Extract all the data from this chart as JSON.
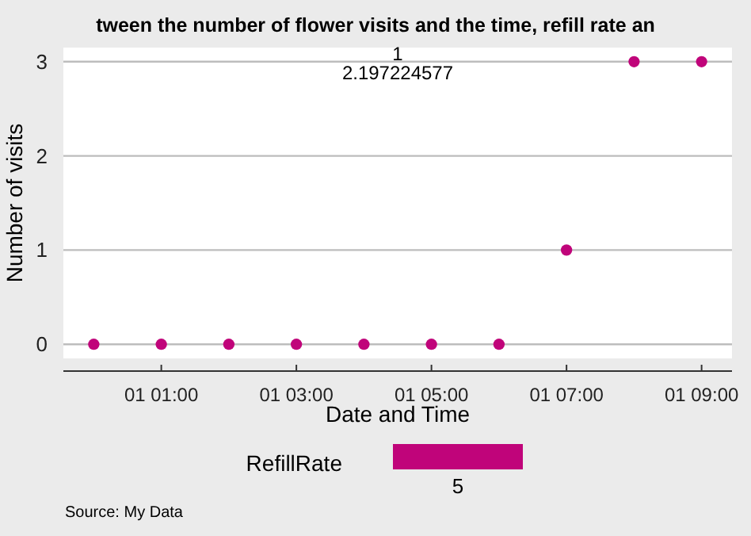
{
  "chart_data": {
    "type": "scatter",
    "title": "tween the number of flower visits and the time, refill rate an",
    "xlabel": "Date and Time",
    "ylabel": "Number of visits",
    "legend_title": "RefillRate",
    "categories": [
      null,
      "01 01:00",
      null,
      "01 03:00",
      null,
      "01 05:00",
      null,
      "01 07:00",
      null,
      "01 09:00"
    ],
    "series": [
      {
        "name": "5",
        "color": "#c0047a",
        "values": [
          0,
          0,
          0,
          0,
          0,
          0,
          0,
          1,
          3,
          3
        ]
      }
    ],
    "ylim": [
      -0.15,
      3.15
    ],
    "yticks": [
      0,
      1,
      2,
      3
    ],
    "grid": "y",
    "legend": "bottom",
    "marker": "circle",
    "annotations": [
      "1",
      "2.197224577",
      "Source: My Data"
    ]
  }
}
